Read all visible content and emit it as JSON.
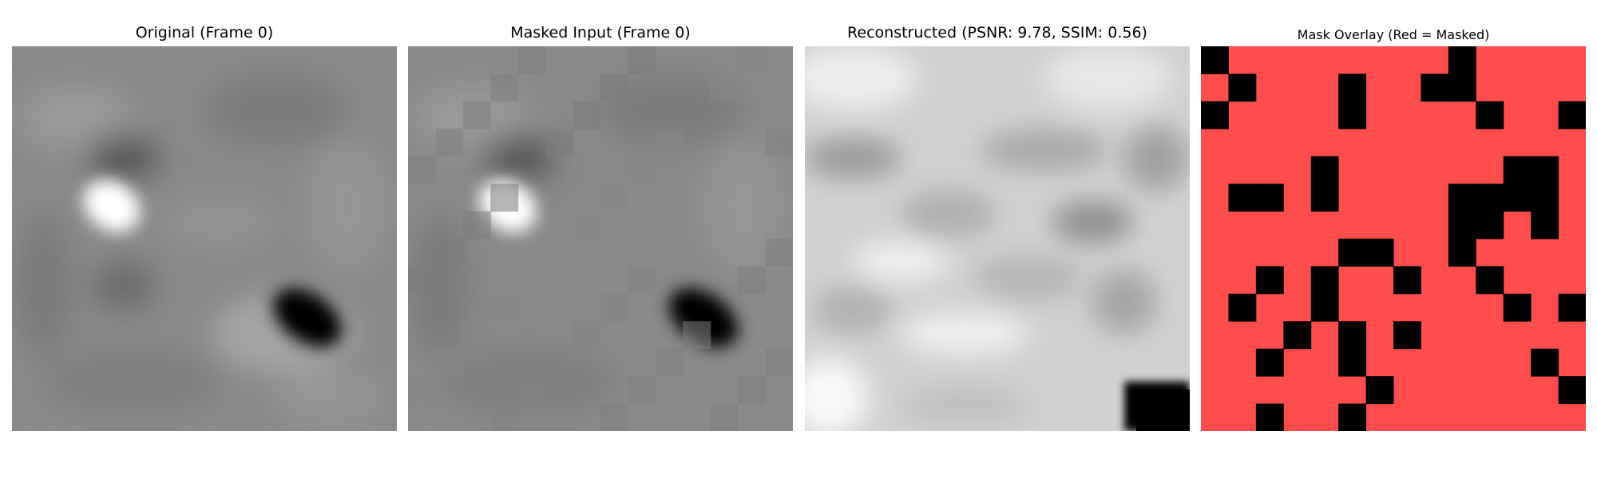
{
  "panels": [
    {
      "title": "Original (Frame 0)"
    },
    {
      "title": "Masked Input (Frame 0)"
    },
    {
      "title": "Reconstructed (PSNR: 9.78, SSIM: 0.56)"
    },
    {
      "title": "Mask Overlay (Red = Masked)"
    }
  ],
  "mask_color": "#ff4d4d"
}
